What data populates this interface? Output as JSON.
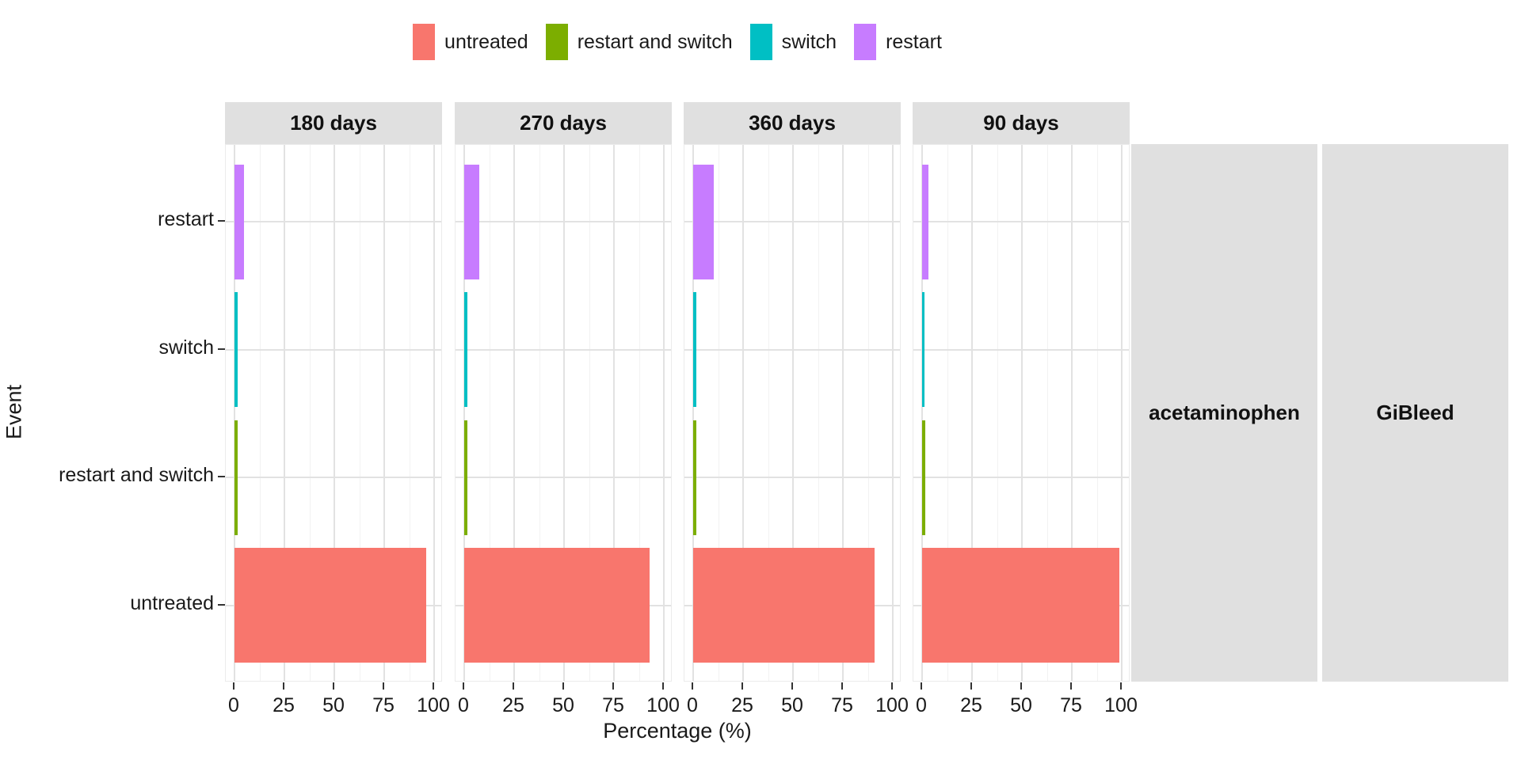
{
  "legend": {
    "items": [
      {
        "label": "untreated",
        "color": "#F8766D"
      },
      {
        "label": "restart and switch",
        "color": "#7CAE00"
      },
      {
        "label": "switch",
        "color": "#00BFC4"
      },
      {
        "label": "restart",
        "color": "#C77CFF"
      }
    ]
  },
  "y_axis": {
    "title": "Event"
  },
  "x_axis": {
    "title": "Percentage (%)",
    "ticks": [
      "0",
      "25",
      "50",
      "75",
      "100"
    ]
  },
  "facets": {
    "column_strips": [
      "180 days",
      "270 days",
      "360 days",
      "90 days"
    ],
    "row_strips": [
      "acetaminophen",
      "GiBleed"
    ]
  },
  "colors": {
    "untreated": "#F8766D",
    "restart_and_switch": "#7CAE00",
    "switch": "#00BFC4",
    "restart": "#C77CFF",
    "strip_background": "#E0E0E0",
    "grid_major": "#E2E2E2",
    "grid_minor": "#F2F2F2",
    "tick": "#333333"
  },
  "chart_data": {
    "type": "bar",
    "orientation": "horizontal",
    "title": "",
    "xlabel": "Percentage (%)",
    "ylabel": "Event",
    "xlim": [
      0,
      100
    ],
    "x_major_ticks": [
      0,
      25,
      50,
      75,
      100
    ],
    "x_minor_ticks": [
      12.5,
      37.5,
      62.5,
      87.5
    ],
    "grid": true,
    "legend_position": "top",
    "categories_top_to_bottom": [
      "restart",
      "switch",
      "restart and switch",
      "untreated"
    ],
    "facet_columns": [
      "180 days",
      "270 days",
      "360 days",
      "90 days"
    ],
    "facet_row_strips": [
      "acetaminophen",
      "GiBleed"
    ],
    "series": [
      {
        "facet": "180 days",
        "values": [
          4.8,
          1.5,
          1.5,
          96
        ]
      },
      {
        "facet": "270 days",
        "values": [
          7.5,
          1.5,
          1.5,
          93
        ]
      },
      {
        "facet": "360 days",
        "values": [
          10.3,
          1.5,
          1.5,
          91
        ]
      },
      {
        "facet": "90 days",
        "values": [
          3.2,
          1.2,
          1.5,
          99
        ]
      }
    ],
    "category_colors": {
      "restart": "#C77CFF",
      "switch": "#00BFC4",
      "restart and switch": "#7CAE00",
      "untreated": "#F8766D"
    }
  }
}
